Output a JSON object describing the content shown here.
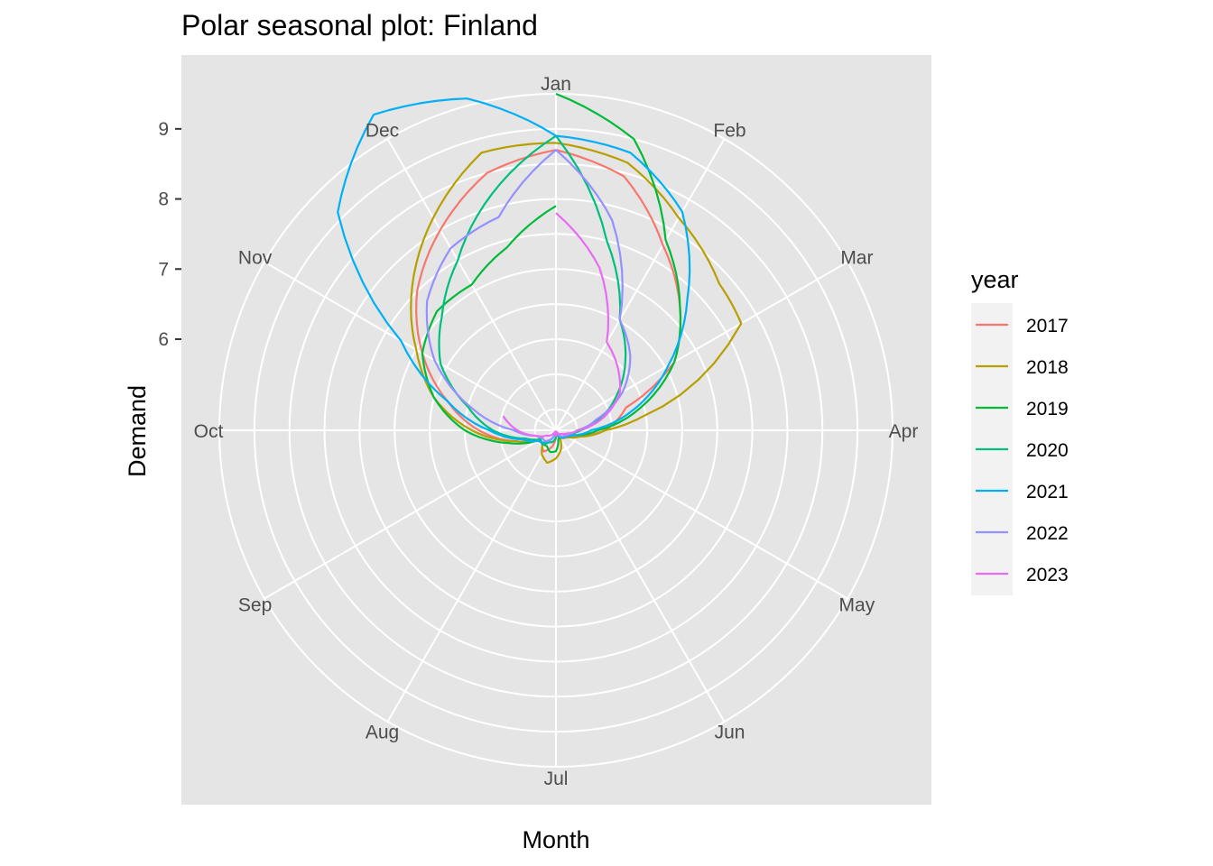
{
  "chart_data": {
    "type": "line",
    "coord": "polar",
    "title": "Polar seasonal plot: Finland",
    "xlabel": "Month",
    "ylabel": "Demand",
    "months": [
      "Jan",
      "Feb",
      "Mar",
      "Apr",
      "May",
      "Jun",
      "Jul",
      "Aug",
      "Sep",
      "Oct",
      "Nov",
      "Dec"
    ],
    "rlim": [
      4.7,
      9.5
    ],
    "r_ticks": [
      6,
      7,
      8,
      9
    ],
    "grid": true,
    "legend": {
      "title": "year",
      "position": "right"
    },
    "series": [
      {
        "name": "2017",
        "color": "#F8766D",
        "points": [
          [
            0,
            8.7
          ],
          [
            0.5,
            8.45
          ],
          [
            1,
            7.75
          ],
          [
            1.5,
            7.2
          ],
          [
            2,
            6.65
          ],
          [
            2.4,
            5.75
          ],
          [
            3,
            5.4
          ],
          [
            3.5,
            5.0
          ],
          [
            4,
            4.85
          ],
          [
            4.5,
            4.86
          ],
          [
            5,
            4.82
          ],
          [
            5.5,
            4.75
          ],
          [
            6,
            4.8
          ],
          [
            6.4,
            4.93
          ],
          [
            7,
            5.05
          ],
          [
            7.5,
            4.98
          ],
          [
            8,
            4.96
          ],
          [
            8.5,
            5.3
          ],
          [
            9,
            5.8
          ],
          [
            9.5,
            6.3
          ],
          [
            10,
            6.9
          ],
          [
            10.5,
            7.5
          ],
          [
            11,
            8.0
          ],
          [
            11.5,
            8.5
          ],
          [
            12,
            8.7
          ]
        ]
      },
      {
        "name": "2018",
        "color": "#B79F00",
        "points": [
          [
            0,
            8.8
          ],
          [
            0.5,
            8.65
          ],
          [
            1,
            8.2
          ],
          [
            1.6,
            7.83
          ],
          [
            2,
            7.75
          ],
          [
            2.7,
            5.95
          ],
          [
            3,
            5.4
          ],
          [
            3.5,
            5.05
          ],
          [
            4,
            4.9
          ],
          [
            4.5,
            4.85
          ],
          [
            5,
            4.8
          ],
          [
            5.5,
            4.98
          ],
          [
            6,
            5.1
          ],
          [
            6.5,
            5.18
          ],
          [
            7,
            5.1
          ],
          [
            7.5,
            4.96
          ],
          [
            8,
            4.97
          ],
          [
            8.5,
            5.3
          ],
          [
            9,
            5.9
          ],
          [
            9.5,
            6.5
          ],
          [
            10,
            7.0
          ],
          [
            10.5,
            7.6
          ],
          [
            11,
            8.2
          ],
          [
            11.5,
            8.8
          ],
          [
            12,
            8.8
          ]
        ]
      },
      {
        "name": "2019",
        "color": "#00BA38",
        "points": [
          [
            0,
            9.5
          ],
          [
            0.5,
            9.0
          ],
          [
            1,
            7.83
          ],
          [
            1.5,
            7.2
          ],
          [
            2,
            6.65
          ],
          [
            2.5,
            5.95
          ],
          [
            3,
            5.3
          ],
          [
            3.5,
            4.97
          ],
          [
            4,
            4.85
          ],
          [
            4.5,
            4.85
          ],
          [
            5,
            4.8
          ],
          [
            5.5,
            4.83
          ],
          [
            6,
            5.0
          ],
          [
            6.5,
            5.02
          ],
          [
            7,
            4.96
          ],
          [
            7.5,
            4.97
          ],
          [
            8,
            4.97
          ],
          [
            8.5,
            5.4
          ],
          [
            9,
            6.0
          ],
          [
            9.5,
            6.5
          ],
          [
            10,
            6.9
          ],
          [
            10.5,
            7.1
          ],
          [
            11,
            7.1
          ],
          [
            11.5,
            7.4
          ],
          [
            12,
            7.9
          ]
        ]
      },
      {
        "name": "2020",
        "color": "#00BF7D",
        "points": [
          [
            0,
            8.9
          ],
          [
            0.5,
            7.5
          ],
          [
            1,
            6.52
          ],
          [
            1.5,
            6.1
          ],
          [
            2,
            5.7
          ],
          [
            2.5,
            5.35
          ],
          [
            3,
            5.05
          ],
          [
            3.5,
            4.9
          ],
          [
            4,
            4.85
          ],
          [
            4.5,
            4.84
          ],
          [
            5,
            4.83
          ],
          [
            5.5,
            4.75
          ],
          [
            6,
            4.8
          ],
          [
            6.5,
            4.87
          ],
          [
            7,
            4.9
          ],
          [
            7.5,
            4.98
          ],
          [
            8,
            4.95
          ],
          [
            8.5,
            5.15
          ],
          [
            9,
            5.6
          ],
          [
            9.5,
            6.0
          ],
          [
            10,
            6.6
          ],
          [
            10.5,
            7.0
          ],
          [
            11,
            7.5
          ],
          [
            11.5,
            8.2
          ],
          [
            12,
            8.9
          ]
        ]
      },
      {
        "name": "2021",
        "color": "#00B0F6",
        "points": [
          [
            0,
            8.9
          ],
          [
            0.5,
            8.8
          ],
          [
            1,
            8.3
          ],
          [
            1.5,
            7.35
          ],
          [
            2,
            6.55
          ],
          [
            2.5,
            5.85
          ],
          [
            3,
            5.2
          ],
          [
            3.5,
            4.97
          ],
          [
            4,
            4.87
          ],
          [
            4.5,
            4.85
          ],
          [
            5,
            4.8
          ],
          [
            5.5,
            4.74
          ],
          [
            6,
            4.73
          ],
          [
            6.5,
            4.76
          ],
          [
            7,
            4.86
          ],
          [
            7.5,
            4.95
          ],
          [
            8,
            5.0
          ],
          [
            8.5,
            5.2
          ],
          [
            9,
            5.65
          ],
          [
            9.5,
            6.3
          ],
          [
            10,
            7.25
          ],
          [
            10.5,
            9.1
          ],
          [
            11,
            9.9
          ],
          [
            11.5,
            9.6
          ],
          [
            12,
            8.9
          ]
        ]
      },
      {
        "name": "2022",
        "color": "#9590FF",
        "points": [
          [
            0,
            8.7
          ],
          [
            0.5,
            7.8
          ],
          [
            1,
            6.52
          ],
          [
            1.5,
            6.2
          ],
          [
            2,
            5.8
          ],
          [
            2.5,
            5.3
          ],
          [
            3,
            5.0
          ],
          [
            3.5,
            4.9
          ],
          [
            4,
            4.85
          ],
          [
            4.5,
            4.82
          ],
          [
            5,
            4.78
          ],
          [
            5.5,
            4.74
          ],
          [
            6,
            4.72
          ],
          [
            6.5,
            4.78
          ],
          [
            7,
            4.85
          ],
          [
            7.5,
            4.92
          ],
          [
            8,
            4.92
          ],
          [
            8.5,
            5.0
          ],
          [
            9,
            5.3
          ],
          [
            9.5,
            5.95
          ],
          [
            10,
            6.7
          ],
          [
            10.5,
            7.3
          ],
          [
            11,
            7.7
          ],
          [
            11.5,
            7.85
          ],
          [
            12,
            8.7
          ]
        ]
      },
      {
        "name": "2023",
        "color": "#E76BF3",
        "points": [
          [
            0,
            7.8
          ],
          [
            0.5,
            7.1
          ],
          [
            1,
            6.15
          ],
          [
            1.5,
            5.95
          ],
          [
            2,
            5.75
          ],
          [
            2.5,
            5.4
          ],
          [
            3,
            5.02
          ],
          [
            3.5,
            4.87
          ],
          [
            4,
            4.8
          ],
          [
            4.5,
            4.77
          ],
          [
            5,
            4.74
          ],
          [
            5.5,
            4.72
          ],
          [
            6,
            4.78
          ],
          [
            6.5,
            4.75
          ],
          [
            7,
            4.72
          ],
          [
            7.5,
            4.8
          ],
          [
            8,
            4.85
          ],
          [
            8.5,
            5.0
          ],
          [
            9,
            5.25
          ],
          [
            9.5,
            5.48
          ]
        ]
      }
    ]
  }
}
